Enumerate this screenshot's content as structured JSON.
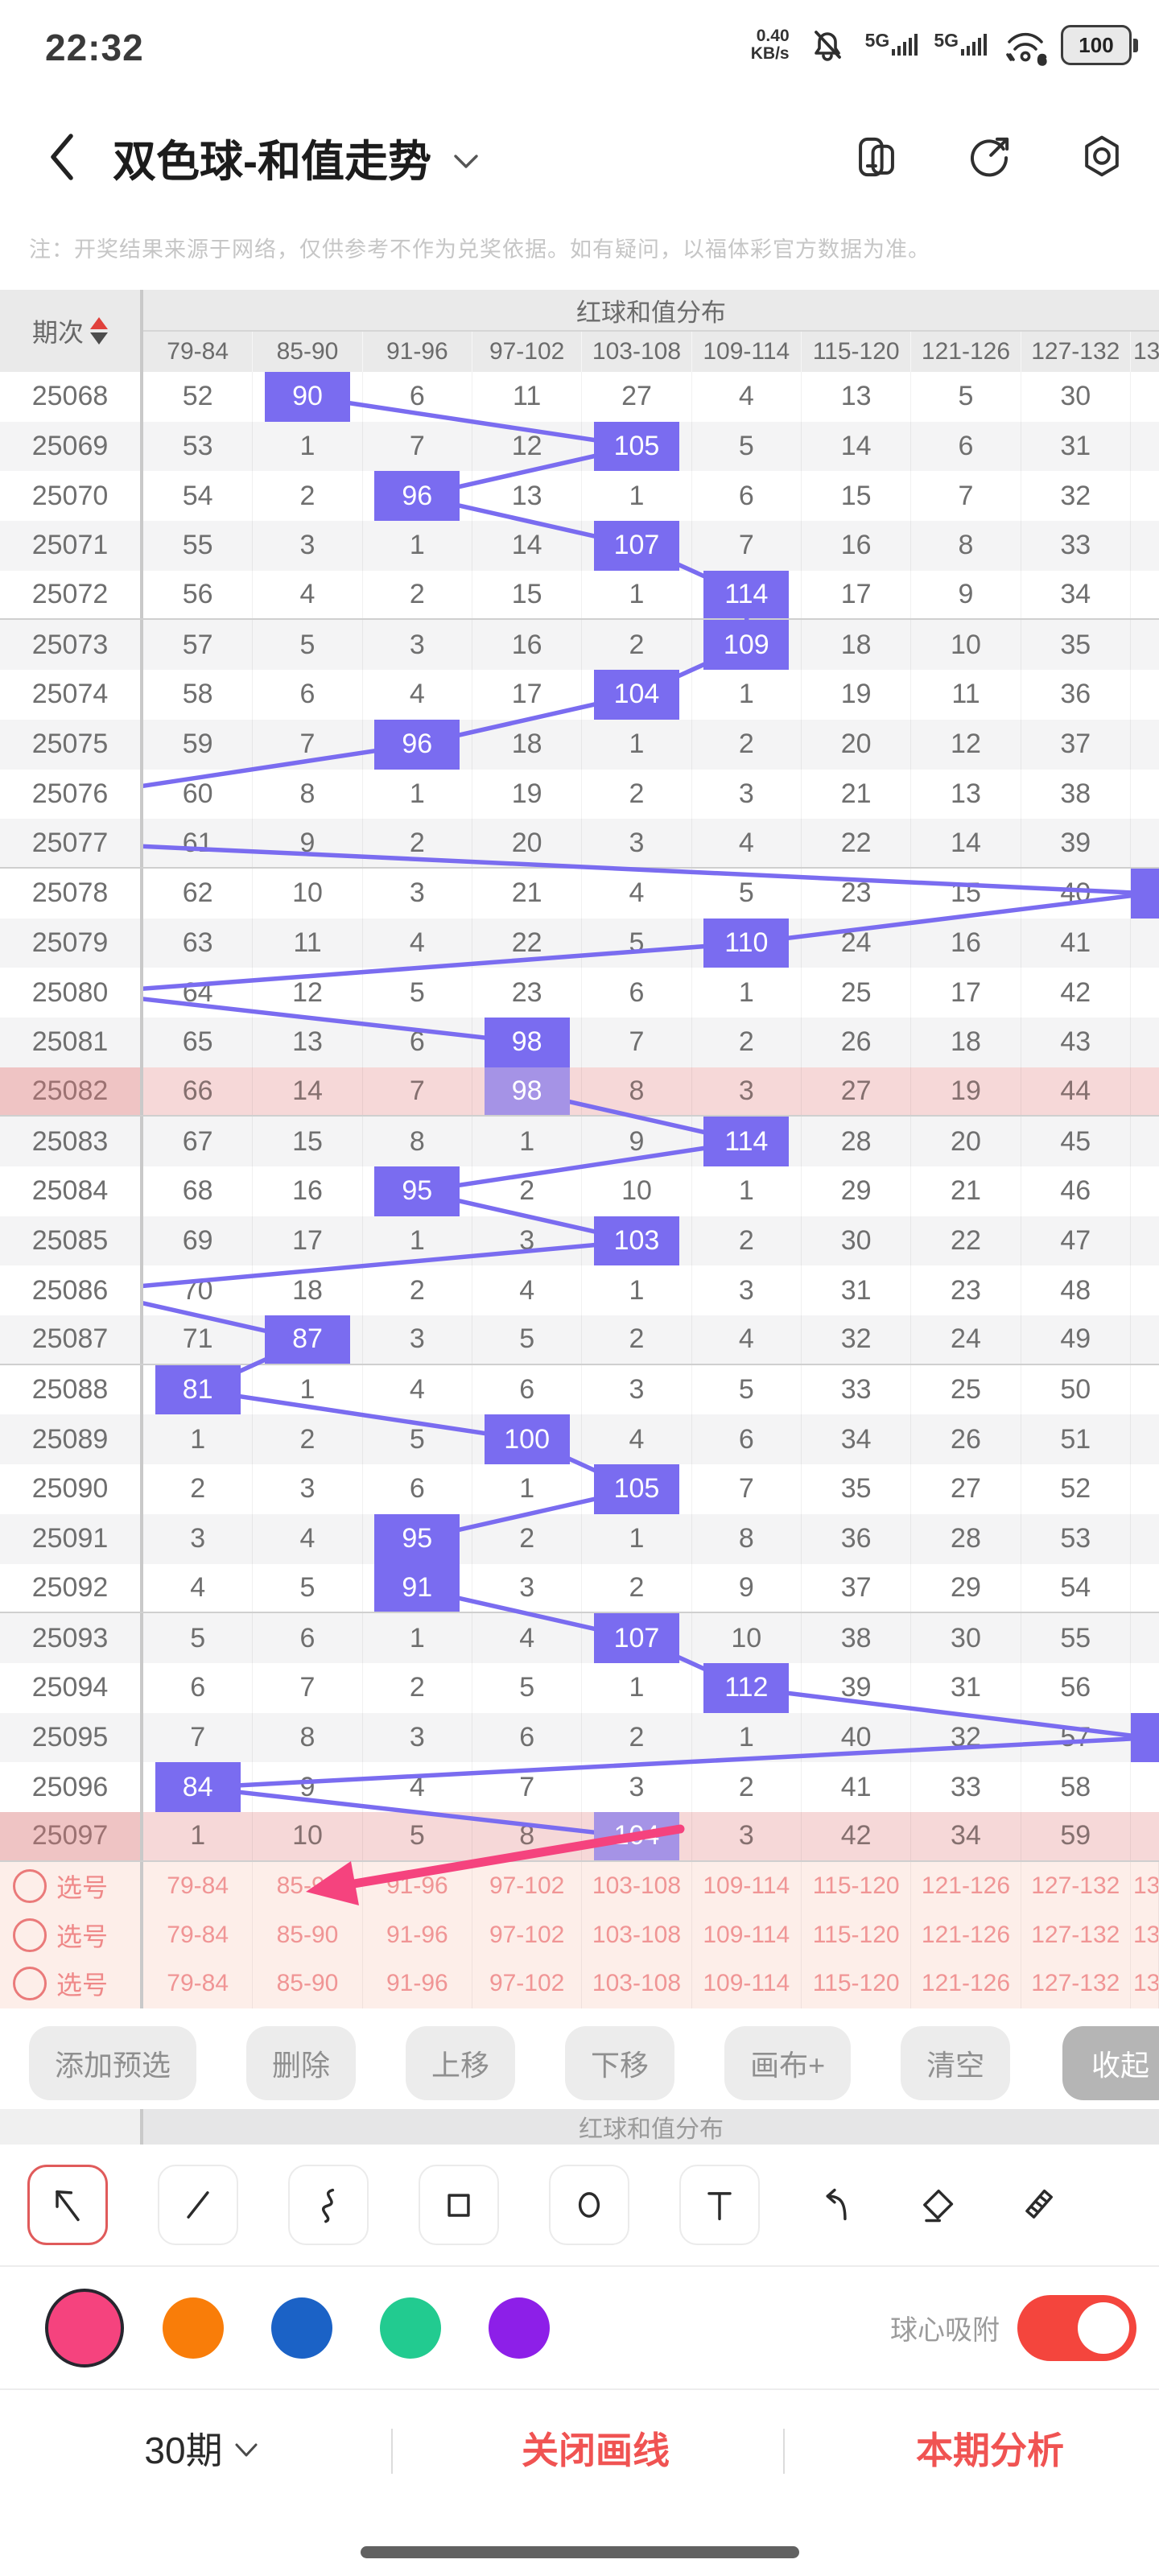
{
  "colors": {
    "trend": "#7a6cf0",
    "trend_on_selected": "#a593e6",
    "annotation": "#f5437e",
    "selected_row_bg": "#f6d8d8",
    "accent_red": "#f4453d"
  },
  "status_bar": {
    "time": "22:32",
    "net_speed_value": "0.40",
    "net_speed_unit": "KB/s",
    "sim1_label": "5G",
    "sim2_label": "5G",
    "wifi_label": "6",
    "battery_level": "100"
  },
  "nav": {
    "title": "双色球-和值走势"
  },
  "note": "注：开奖结果来源于网络，仅供参考不作为兑奖依据。如有疑问，以福体彩官方数据为准。",
  "table": {
    "period_header": "期次",
    "group_header": "红球和值分布",
    "columns": [
      "79-84",
      "85-90",
      "91-96",
      "97-102",
      "103-108",
      "109-114",
      "115-120",
      "121-126",
      "127-132",
      "13"
    ],
    "rows": [
      {
        "period": "25068",
        "cells": [
          "52",
          "90",
          "6",
          "11",
          "27",
          "4",
          "13",
          "5",
          "30"
        ],
        "hit": 1
      },
      {
        "period": "25069",
        "cells": [
          "53",
          "1",
          "7",
          "12",
          "105",
          "5",
          "14",
          "6",
          "31"
        ],
        "hit": 4
      },
      {
        "period": "25070",
        "cells": [
          "54",
          "2",
          "96",
          "13",
          "1",
          "6",
          "15",
          "7",
          "32"
        ],
        "hit": 2
      },
      {
        "period": "25071",
        "cells": [
          "55",
          "3",
          "1",
          "14",
          "107",
          "7",
          "16",
          "8",
          "33"
        ],
        "hit": 4
      },
      {
        "period": "25072",
        "cells": [
          "56",
          "4",
          "2",
          "15",
          "1",
          "114",
          "17",
          "9",
          "34"
        ],
        "hit": 5
      },
      {
        "period": "25073",
        "cells": [
          "57",
          "5",
          "3",
          "16",
          "2",
          "109",
          "18",
          "10",
          "35"
        ],
        "hit": 5
      },
      {
        "period": "25074",
        "cells": [
          "58",
          "6",
          "4",
          "17",
          "104",
          "1",
          "19",
          "11",
          "36"
        ],
        "hit": 4
      },
      {
        "period": "25075",
        "cells": [
          "59",
          "7",
          "96",
          "18",
          "1",
          "2",
          "20",
          "12",
          "37"
        ],
        "hit": 2
      },
      {
        "period": "25076",
        "cells": [
          "60",
          "8",
          "1",
          "19",
          "2",
          "3",
          "21",
          "13",
          "38"
        ],
        "hit": "left"
      },
      {
        "period": "25077",
        "cells": [
          "61",
          "9",
          "2",
          "20",
          "3",
          "4",
          "22",
          "14",
          "39"
        ],
        "hit": "left"
      },
      {
        "period": "25078",
        "cells": [
          "62",
          "10",
          "3",
          "21",
          "4",
          "5",
          "23",
          "15",
          "40"
        ],
        "hit": "right"
      },
      {
        "period": "25079",
        "cells": [
          "63",
          "11",
          "4",
          "22",
          "5",
          "110",
          "24",
          "16",
          "41"
        ],
        "hit": 5
      },
      {
        "period": "25080",
        "cells": [
          "64",
          "12",
          "5",
          "23",
          "6",
          "1",
          "25",
          "17",
          "42"
        ],
        "hit": "left"
      },
      {
        "period": "25081",
        "cells": [
          "65",
          "13",
          "6",
          "98",
          "7",
          "2",
          "26",
          "18",
          "43"
        ],
        "hit": 3
      },
      {
        "period": "25082",
        "cells": [
          "66",
          "14",
          "7",
          "98",
          "8",
          "3",
          "27",
          "19",
          "44"
        ],
        "hit": 3,
        "selected": true
      },
      {
        "period": "25083",
        "cells": [
          "67",
          "15",
          "8",
          "1",
          "9",
          "114",
          "28",
          "20",
          "45"
        ],
        "hit": 5
      },
      {
        "period": "25084",
        "cells": [
          "68",
          "16",
          "95",
          "2",
          "10",
          "1",
          "29",
          "21",
          "46"
        ],
        "hit": 2
      },
      {
        "period": "25085",
        "cells": [
          "69",
          "17",
          "1",
          "3",
          "103",
          "2",
          "30",
          "22",
          "47"
        ],
        "hit": 4
      },
      {
        "period": "25086",
        "cells": [
          "70",
          "18",
          "2",
          "4",
          "1",
          "3",
          "31",
          "23",
          "48"
        ],
        "hit": "left"
      },
      {
        "period": "25087",
        "cells": [
          "71",
          "87",
          "3",
          "5",
          "2",
          "4",
          "32",
          "24",
          "49"
        ],
        "hit": 1
      },
      {
        "period": "25088",
        "cells": [
          "81",
          "1",
          "4",
          "6",
          "3",
          "5",
          "33",
          "25",
          "50"
        ],
        "hit": 0
      },
      {
        "period": "25089",
        "cells": [
          "1",
          "2",
          "5",
          "100",
          "4",
          "6",
          "34",
          "26",
          "51"
        ],
        "hit": 3
      },
      {
        "period": "25090",
        "cells": [
          "2",
          "3",
          "6",
          "1",
          "105",
          "7",
          "35",
          "27",
          "52"
        ],
        "hit": 4
      },
      {
        "period": "25091",
        "cells": [
          "3",
          "4",
          "95",
          "2",
          "1",
          "8",
          "36",
          "28",
          "53"
        ],
        "hit": 2
      },
      {
        "period": "25092",
        "cells": [
          "4",
          "5",
          "91",
          "3",
          "2",
          "9",
          "37",
          "29",
          "54"
        ],
        "hit": 2
      },
      {
        "period": "25093",
        "cells": [
          "5",
          "6",
          "1",
          "4",
          "107",
          "10",
          "38",
          "30",
          "55"
        ],
        "hit": 4
      },
      {
        "period": "25094",
        "cells": [
          "6",
          "7",
          "2",
          "5",
          "1",
          "112",
          "39",
          "31",
          "56"
        ],
        "hit": 5
      },
      {
        "period": "25095",
        "cells": [
          "7",
          "8",
          "3",
          "6",
          "2",
          "1",
          "40",
          "32",
          "57"
        ],
        "hit": "right"
      },
      {
        "period": "25096",
        "cells": [
          "84",
          "9",
          "4",
          "7",
          "3",
          "2",
          "41",
          "33",
          "58"
        ],
        "hit": 0
      },
      {
        "period": "25097",
        "cells": [
          "1",
          "10",
          "5",
          "8",
          "104",
          "3",
          "42",
          "34",
          "59"
        ],
        "hit": 4,
        "selected": true
      }
    ],
    "pick_rows": [
      {
        "label": "选号"
      },
      {
        "label": "选号"
      },
      {
        "label": "选号"
      }
    ]
  },
  "actions": [
    {
      "label": "添加预选"
    },
    {
      "label": "删除"
    },
    {
      "label": "上移"
    },
    {
      "label": "下移"
    },
    {
      "label": "画布+"
    },
    {
      "label": "清空"
    },
    {
      "label": "收起",
      "primary": true
    }
  ],
  "section2_header": "红球和值分布",
  "tools": [
    {
      "name": "arrow-tool",
      "selected": true
    },
    {
      "name": "line-tool"
    },
    {
      "name": "curve-tool"
    },
    {
      "name": "rectangle-tool"
    },
    {
      "name": "circle-tool"
    },
    {
      "name": "text-tool"
    },
    {
      "name": "undo-tool",
      "bare": true
    },
    {
      "name": "eraser-tool",
      "bare": true
    },
    {
      "name": "ruler-tool",
      "bare": true
    }
  ],
  "palette": {
    "colors": [
      {
        "name": "pink",
        "hex": "#f5437e",
        "selected": true
      },
      {
        "name": "orange",
        "hex": "#f97d09"
      },
      {
        "name": "blue",
        "hex": "#1b62c6"
      },
      {
        "name": "green",
        "hex": "#22cb90"
      },
      {
        "name": "purple",
        "hex": "#8d1fe8"
      }
    ],
    "snap_label": "球心吸附",
    "snap_on": true
  },
  "bottom_bar": {
    "periods": "30期",
    "close_drawing": "关闭画线",
    "analysis": "本期分析"
  }
}
